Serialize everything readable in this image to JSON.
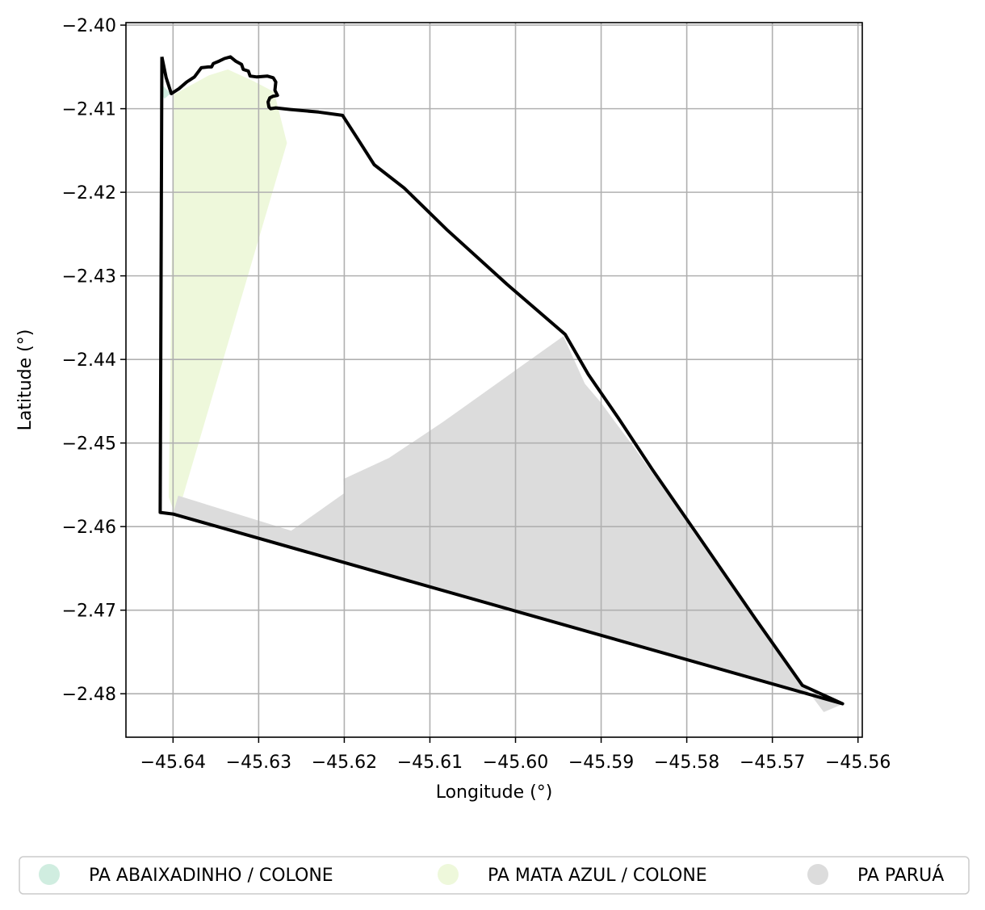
{
  "chart_data": {
    "type": "map",
    "xlabel": "Longitude (°)",
    "ylabel": "Latitude (°)",
    "xlim": [
      -45.6455,
      -45.5595
    ],
    "ylim": [
      -2.4852,
      -2.3997
    ],
    "xticks": [
      -45.64,
      -45.63,
      -45.62,
      -45.61,
      -45.6,
      -45.59,
      -45.58,
      -45.57,
      -45.56
    ],
    "xtick_labels": [
      "−45.64",
      "−45.63",
      "−45.62",
      "−45.61",
      "−45.60",
      "−45.59",
      "−45.58",
      "−45.57",
      "−45.56"
    ],
    "yticks": [
      -2.4,
      -2.41,
      -2.42,
      -2.43,
      -2.44,
      -2.45,
      -2.46,
      -2.47,
      -2.48
    ],
    "ytick_labels": [
      "−2.40",
      "−2.41",
      "−2.42",
      "−2.43",
      "−2.44",
      "−2.45",
      "−2.46",
      "−2.47",
      "−2.48"
    ],
    "grid": true,
    "legend_position": "bottom",
    "series": [
      {
        "name": "PA ABAIXADINHO / COLONE",
        "color": "#d0ede0",
        "polygon": [
          [
            -45.6412,
            -2.4072
          ],
          [
            -45.6403,
            -2.4082
          ],
          [
            -45.641,
            -2.4088
          ],
          [
            -45.6412,
            -2.4085
          ]
        ]
      },
      {
        "name": "PA MATA AZUL / COLONE",
        "color": "#eef8db",
        "polygon": [
          [
            -45.6399,
            -2.4083
          ],
          [
            -45.6358,
            -2.406
          ],
          [
            -45.6336,
            -2.4053
          ],
          [
            -45.6306,
            -2.4067
          ],
          [
            -45.6282,
            -2.408
          ],
          [
            -45.6267,
            -2.4141
          ],
          [
            -45.6396,
            -2.459
          ],
          [
            -45.6405,
            -2.4565
          ]
        ]
      },
      {
        "name": "PA PARUÁ",
        "color": "#dcdcdc",
        "polygon": [
          [
            -45.6394,
            -2.4563
          ],
          [
            -45.6262,
            -2.4605
          ],
          [
            -45.62,
            -2.456
          ],
          [
            -45.6201,
            -2.4543
          ],
          [
            -45.6148,
            -2.4518
          ],
          [
            -45.6085,
            -2.4475
          ],
          [
            -45.5944,
            -2.4372
          ],
          [
            -45.5919,
            -2.4429
          ],
          [
            -45.59,
            -2.4452
          ],
          [
            -45.588,
            -2.448
          ],
          [
            -45.5863,
            -2.4503
          ],
          [
            -45.5843,
            -2.4532
          ],
          [
            -45.5824,
            -2.4558
          ],
          [
            -45.581,
            -2.458
          ],
          [
            -45.579,
            -2.461
          ],
          [
            -45.5756,
            -2.466
          ],
          [
            -45.5718,
            -2.4715
          ],
          [
            -45.5676,
            -2.4773
          ],
          [
            -45.564,
            -2.4822
          ],
          [
            -45.5617,
            -2.4812
          ],
          [
            -45.64,
            -2.4585
          ]
        ]
      }
    ],
    "boundary": [
      [
        -45.6413,
        -2.4038
      ],
      [
        -45.6408,
        -2.4063
      ],
      [
        -45.6402,
        -2.4082
      ],
      [
        -45.6393,
        -2.4076
      ],
      [
        -45.6384,
        -2.4068
      ],
      [
        -45.6375,
        -2.4062
      ],
      [
        -45.6372,
        -2.4058
      ],
      [
        -45.6367,
        -2.4051
      ],
      [
        -45.6359,
        -2.405
      ],
      [
        -45.6355,
        -2.405
      ],
      [
        -45.6353,
        -2.4046
      ],
      [
        -45.6346,
        -2.4043
      ],
      [
        -45.634,
        -2.404
      ],
      [
        -45.6333,
        -2.4038
      ],
      [
        -45.6327,
        -2.4043
      ],
      [
        -45.632,
        -2.4047
      ],
      [
        -45.6318,
        -2.4053
      ],
      [
        -45.6312,
        -2.4055
      ],
      [
        -45.631,
        -2.4061
      ],
      [
        -45.6302,
        -2.4062
      ],
      [
        -45.629,
        -2.4061
      ],
      [
        -45.6283,
        -2.4063
      ],
      [
        -45.628,
        -2.4068
      ],
      [
        -45.6281,
        -2.4078
      ],
      [
        -45.6278,
        -2.4084
      ],
      [
        -45.6283,
        -2.4085
      ],
      [
        -45.6287,
        -2.4087
      ],
      [
        -45.6289,
        -2.4092
      ],
      [
        -45.6288,
        -2.4098
      ],
      [
        -45.6286,
        -2.41
      ],
      [
        -45.628,
        -2.4099
      ],
      [
        -45.6263,
        -2.4101
      ],
      [
        -45.623,
        -2.4104
      ],
      [
        -45.6202,
        -2.4108
      ],
      [
        -45.6185,
        -2.4135
      ],
      [
        -45.6165,
        -2.4167
      ],
      [
        -45.613,
        -2.4195
      ],
      [
        -45.608,
        -2.4245
      ],
      [
        -45.601,
        -2.431
      ],
      [
        -45.5942,
        -2.437
      ],
      [
        -45.5915,
        -2.4418
      ],
      [
        -45.588,
        -2.447
      ],
      [
        -45.584,
        -2.4532
      ],
      [
        -45.579,
        -2.4606
      ],
      [
        -45.572,
        -2.471
      ],
      [
        -45.5665,
        -2.479
      ],
      [
        -45.5618,
        -2.4812
      ],
      [
        -45.64,
        -2.4585
      ],
      [
        -45.6415,
        -2.4583
      ],
      [
        -45.6413,
        -2.4038
      ]
    ]
  }
}
